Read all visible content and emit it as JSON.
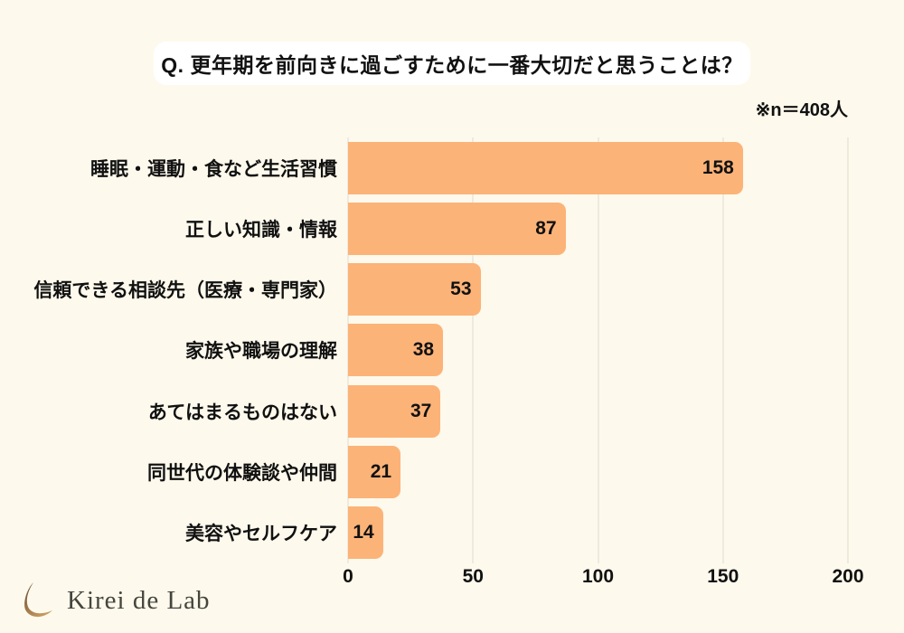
{
  "page": {
    "background": "#FDF9EC",
    "title": "Q. 更年期を前向きに過ごすために一番大切だと思うことは？",
    "sample_note": "※n＝408人"
  },
  "chart_data": {
    "type": "bar",
    "orientation": "horizontal",
    "title": "Q. 更年期を前向きに過ごすために一番大切だと思うことは？",
    "subtitle": "※n＝408人",
    "categories": [
      "睡眠・運動・食など生活習慣",
      "正しい知識・情報",
      "信頼できる相談先（医療・専門家）",
      "家族や職場の理解",
      "あてはまるものはない",
      "同世代の体験談や仲間",
      "美容やセルフケア"
    ],
    "values": [
      158,
      87,
      53,
      38,
      37,
      21,
      14
    ],
    "xlabel": "",
    "ylabel": "",
    "xlim": [
      0,
      200
    ],
    "xticks": [
      0,
      50,
      100,
      150,
      200
    ],
    "grid": true,
    "legend": "none",
    "value_labels": "inside-end",
    "colors": {
      "bar": "#FCB378",
      "background": "#FDF9EC",
      "gridline": "#DFDCD2",
      "text": "#111111",
      "title_box": "#FFFFFF"
    }
  },
  "logo": {
    "text": "Kirei de Lab",
    "icon": "crescent-swoosh-icon",
    "icon_gradient": [
      "#6E4F35",
      "#C9A063"
    ],
    "text_color": "#45453E"
  }
}
